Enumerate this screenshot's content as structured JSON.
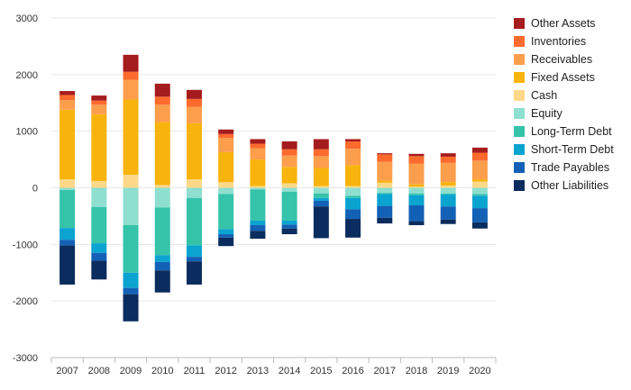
{
  "chart_data": {
    "type": "bar",
    "stacked": true,
    "categories": [
      "2007",
      "2008",
      "2009",
      "2010",
      "2011",
      "2012",
      "2013",
      "2014",
      "2015",
      "2016",
      "2017",
      "2018",
      "2019",
      "2020"
    ],
    "ylim": [
      -3000,
      3000
    ],
    "yticks": [
      -3000,
      -2000,
      -1000,
      0,
      1000,
      2000,
      3000
    ],
    "grid": true,
    "legend_position": "right",
    "assets": [
      {
        "name": "Cash",
        "color": "#fdd889",
        "values": [
          150,
          120,
          230,
          50,
          150,
          100,
          30,
          80,
          30,
          30,
          90,
          20,
          40,
          110
        ]
      },
      {
        "name": "Fixed Assets",
        "color": "#f8b40c",
        "values": [
          1230,
          1180,
          1330,
          1110,
          990,
          530,
          470,
          290,
          320,
          370,
          40,
          40,
          60,
          40
        ]
      },
      {
        "name": "Receivables",
        "color": "#fd9e4d",
        "values": [
          170,
          170,
          350,
          310,
          290,
          250,
          200,
          200,
          210,
          290,
          330,
          370,
          340,
          330
        ]
      },
      {
        "name": "Inventories",
        "color": "#fc6b2d",
        "values": [
          90,
          70,
          140,
          140,
          140,
          70,
          80,
          110,
          120,
          130,
          130,
          130,
          110,
          140
        ]
      },
      {
        "name": "Other Assets",
        "color": "#a51c1e",
        "values": [
          70,
          90,
          300,
          230,
          160,
          80,
          80,
          140,
          180,
          40,
          20,
          40,
          60,
          90
        ]
      }
    ],
    "liabilities": [
      {
        "name": "Equity",
        "color": "#8edfcf",
        "values": [
          -40,
          -340,
          -660,
          -350,
          -180,
          -110,
          -30,
          -70,
          -100,
          -140,
          -90,
          -100,
          -100,
          -110
        ]
      },
      {
        "name": "Long-Term Debt",
        "color": "#35c3aa",
        "values": [
          -670,
          -640,
          -840,
          -840,
          -840,
          -620,
          -550,
          -510,
          -80,
          -40,
          -20,
          -30,
          -20,
          -30
        ]
      },
      {
        "name": "Short-Term Debt",
        "color": "#0ba4d1",
        "values": [
          -210,
          -170,
          -270,
          -120,
          -200,
          -90,
          -80,
          -70,
          -50,
          -200,
          -210,
          -180,
          -210,
          -220
        ]
      },
      {
        "name": "Trade Payables",
        "color": "#1361b6",
        "values": [
          -100,
          -140,
          -110,
          -150,
          -80,
          -60,
          -100,
          -70,
          -100,
          -170,
          -210,
          -280,
          -230,
          -250
        ]
      },
      {
        "name": "Other Liabilities",
        "color": "#0b2c5e",
        "values": [
          -690,
          -330,
          -480,
          -390,
          -410,
          -150,
          -140,
          -100,
          -560,
          -330,
          -100,
          -70,
          -80,
          -110
        ]
      }
    ],
    "legend": [
      {
        "name": "Other Assets",
        "color": "#a51c1e"
      },
      {
        "name": "Inventories",
        "color": "#fc6b2d"
      },
      {
        "name": "Receivables",
        "color": "#fd9e4d"
      },
      {
        "name": "Fixed Assets",
        "color": "#f8b40c"
      },
      {
        "name": "Cash",
        "color": "#fdd889"
      },
      {
        "name": "Equity",
        "color": "#8edfcf"
      },
      {
        "name": "Long-Term Debt",
        "color": "#35c3aa"
      },
      {
        "name": "Short-Term Debt",
        "color": "#0ba4d1"
      },
      {
        "name": "Trade Payables",
        "color": "#1361b6"
      },
      {
        "name": "Other Liabilities",
        "color": "#0b2c5e"
      }
    ]
  }
}
